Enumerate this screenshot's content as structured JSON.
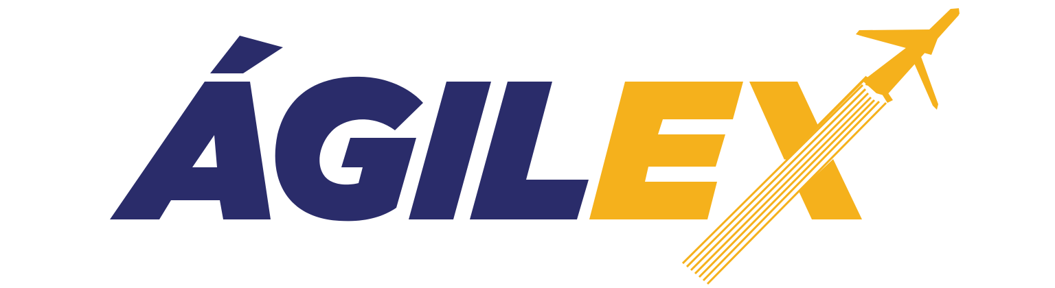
{
  "logo": {
    "wordmark": "ÁGILEX",
    "primary_part": "ÁGIL",
    "accent_part": "EX",
    "icon": "airplane-icon",
    "colors": {
      "primary": "#2a2c6a",
      "accent": "#f5b11c",
      "background": "#ffffff"
    }
  }
}
